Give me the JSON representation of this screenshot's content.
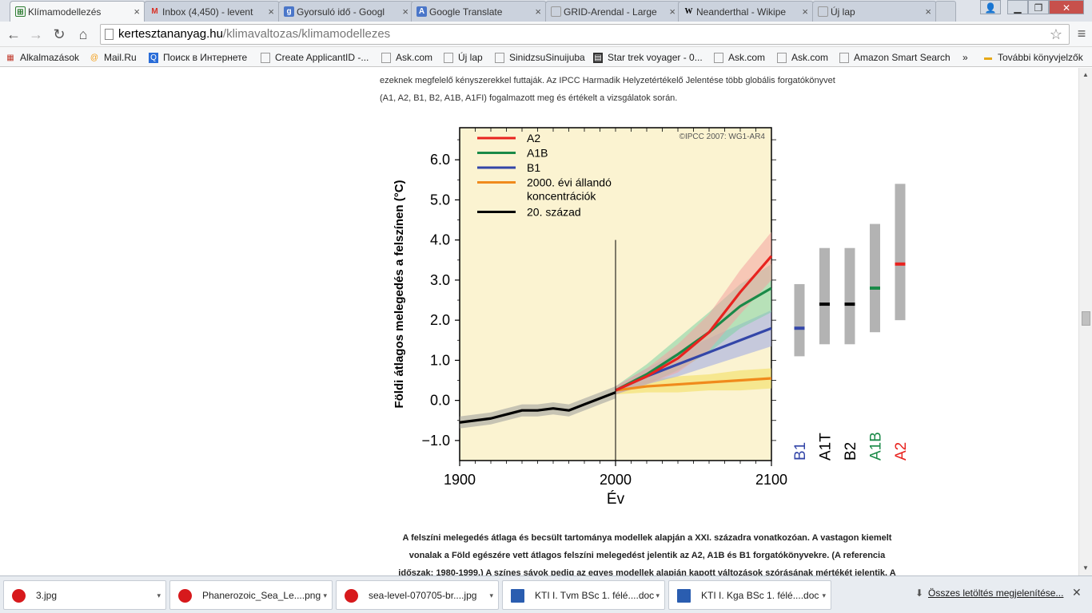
{
  "tabs": [
    {
      "title": "Klímamodellezés",
      "icon": "site-icon",
      "color": "#2e7d32"
    },
    {
      "title": "Inbox (4,450) - levent",
      "icon": "gmail-icon",
      "color": "#d93025"
    },
    {
      "title": "Gyorsuló idő - Googl",
      "icon": "google-sites-icon",
      "color": "#4a76c9"
    },
    {
      "title": "Google Translate",
      "icon": "translate-icon",
      "color": "#4a76c9"
    },
    {
      "title": "GRID-Arendal - Large",
      "icon": "page-icon",
      "color": "#888888"
    },
    {
      "title": "Neanderthal - Wikipe",
      "icon": "wikipedia-icon",
      "color": "#000000"
    },
    {
      "title": "Új lap",
      "icon": "page-icon",
      "color": "#888888"
    }
  ],
  "address": {
    "domain": "kertesztananyag.hu",
    "path": "/klimavaltozas/klimamodellezes"
  },
  "bookmarks": [
    {
      "label": "Alkalmazások"
    },
    {
      "label": "Mail.Ru"
    },
    {
      "label": "Поиск в Интернете"
    },
    {
      "label": "Create ApplicantID -..."
    },
    {
      "label": "Ask.com"
    },
    {
      "label": "Új lap"
    },
    {
      "label": "SinidzsuSinuijuba"
    },
    {
      "label": "Star trek voyager - 0..."
    },
    {
      "label": "Ask.com"
    },
    {
      "label": "Ask.com"
    },
    {
      "label": "Amazon Smart Search"
    },
    {
      "label": "»"
    },
    {
      "label": "További könyvjelzők"
    }
  ],
  "content": {
    "intro_line1": "ezeknek megfelelő kényszerekkel futtaják. Az IPCC Harmadik Helyzetértékelő Jelentése több globális forgatókönyvet",
    "intro_line2": "(A1, A2, B1, B2, A1B, A1FI) fogalmazott meg és értékelt a vizsgálatok során.",
    "caption_line1": "A felszíni melegedés átlaga és becsült tartománya modellek alapján a XXI. századra vonatkozóan. A vastagon kiemelt",
    "caption_line2": "vonalak a Föld egészére vett átlagos felszíni melegedést jelentik az A2, A1B és B1 forgatókönyvekre. (A referencia",
    "caption_line3": "időszak: 1980-1999.) A színes sávok pedig az egyes modellek alapján kapott változások szórásának mértékét jelentik. A"
  },
  "chart_data": {
    "type": "line",
    "ylabel": "Földi átlagos melegedés a felszínen (°C)",
    "xlabel": "Év",
    "copyright": "©IPCC 2007: WG1-AR4",
    "xlim": [
      1900,
      2100
    ],
    "ylim": [
      -1.5,
      6.8
    ],
    "xticks": [
      1900,
      2000,
      2100
    ],
    "xtick_labels": [
      "1900",
      "2000",
      "2100"
    ],
    "yticks": [
      -1.0,
      0.0,
      1.0,
      2.0,
      3.0,
      4.0,
      5.0,
      6.0
    ],
    "ytick_labels": [
      "−1.0",
      "0.0",
      "1.0",
      "2.0",
      "3.0",
      "4.0",
      "5.0",
      "6.0"
    ],
    "legend": [
      {
        "name": "A2",
        "color": "#e8231f"
      },
      {
        "name": "A1B",
        "color": "#1a8a48"
      },
      {
        "name": "B1",
        "color": "#3346a8"
      },
      {
        "name": "2000. évi állandó koncentrációk",
        "line1": "2000. évi állandó",
        "line2": "koncentrációk",
        "color": "#f08a1c"
      },
      {
        "name": "20. század",
        "color": "#000000"
      }
    ],
    "series": [
      {
        "name": "20. század",
        "color": "#000000",
        "band": "#9a9a9a",
        "x": [
          1900,
          1910,
          1920,
          1930,
          1940,
          1950,
          1960,
          1970,
          1980,
          1990,
          2000
        ],
        "y": [
          -0.55,
          -0.5,
          -0.45,
          -0.35,
          -0.25,
          -0.25,
          -0.2,
          -0.25,
          -0.1,
          0.05,
          0.2
        ],
        "spread": [
          0.15,
          0.15,
          0.15,
          0.15,
          0.15,
          0.15,
          0.15,
          0.15,
          0.15,
          0.15,
          0.15
        ]
      },
      {
        "name": "2000. évi állandó koncentrációk",
        "color": "#f08a1c",
        "band": "#f3dd5a",
        "x": [
          2000,
          2020,
          2040,
          2060,
          2080,
          2100
        ],
        "y": [
          0.25,
          0.35,
          0.4,
          0.45,
          0.5,
          0.55
        ],
        "spread": [
          0.1,
          0.15,
          0.2,
          0.2,
          0.25,
          0.25
        ]
      },
      {
        "name": "B1",
        "color": "#3346a8",
        "band": "#9aa6e6",
        "x": [
          2000,
          2020,
          2040,
          2060,
          2080,
          2100
        ],
        "y": [
          0.25,
          0.6,
          0.9,
          1.2,
          1.5,
          1.8
        ],
        "spread": [
          0.1,
          0.2,
          0.3,
          0.35,
          0.4,
          0.45
        ]
      },
      {
        "name": "A1B",
        "color": "#1a8a48",
        "band": "#7fd1a4",
        "x": [
          2000,
          2020,
          2040,
          2060,
          2080,
          2100
        ],
        "y": [
          0.25,
          0.65,
          1.15,
          1.7,
          2.35,
          2.8
        ],
        "spread": [
          0.1,
          0.25,
          0.4,
          0.5,
          0.55,
          0.6
        ]
      },
      {
        "name": "A2",
        "color": "#e8231f",
        "band": "#f4a3a0",
        "x": [
          2000,
          2020,
          2040,
          2060,
          2080,
          2100
        ],
        "y": [
          0.25,
          0.6,
          1.05,
          1.7,
          2.7,
          3.6
        ],
        "spread": [
          0.1,
          0.2,
          0.35,
          0.45,
          0.55,
          0.6
        ]
      }
    ],
    "ranges": [
      {
        "name": "B1",
        "low": 1.1,
        "high": 2.9,
        "best": 1.8,
        "color": "#3346a8"
      },
      {
        "name": "A1T",
        "low": 1.4,
        "high": 3.8,
        "best": 2.4,
        "color": "#000000"
      },
      {
        "name": "B2",
        "low": 1.4,
        "high": 3.8,
        "best": 2.4,
        "color": "#000000"
      },
      {
        "name": "A1B",
        "low": 1.7,
        "high": 4.4,
        "best": 2.8,
        "color": "#1a8a48"
      },
      {
        "name": "A2",
        "low": 2.0,
        "high": 5.4,
        "best": 3.4,
        "color": "#e8231f"
      }
    ]
  },
  "downloads": [
    {
      "name": "3.jpg",
      "type": "image"
    },
    {
      "name": "Phanerozoic_Sea_Le....png",
      "type": "image"
    },
    {
      "name": "sea-level-070705-br....jpg",
      "type": "image"
    },
    {
      "name": "KTI I. Tvm BSc 1. félé....doc",
      "type": "doc"
    },
    {
      "name": "KTI I. Kga BSc 1. félé....doc",
      "type": "doc"
    }
  ],
  "downloads_all": "Összes letöltés megjelenítése..."
}
